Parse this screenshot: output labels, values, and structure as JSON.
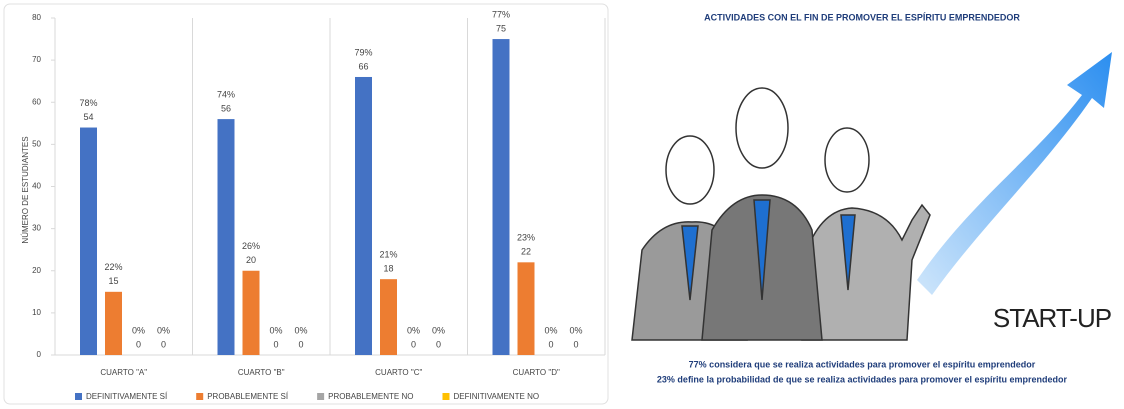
{
  "chart_data": {
    "type": "bar",
    "y_label": "NÚMERO DE ESTUDIANTES",
    "categories": [
      "CUARTO \"A\"",
      "CUARTO \"B\"",
      "CUARTO \"C\"",
      "CUARTO \"D\""
    ],
    "series": [
      {
        "name": "DEFINITIVAMENTE SÍ",
        "color": "#4472c4",
        "values": [
          54,
          56,
          66,
          75
        ],
        "percent_labels": [
          "78%",
          "74%",
          "79%",
          "77%"
        ]
      },
      {
        "name": "PROBABLEMENTE SÍ",
        "color": "#ed7d31",
        "values": [
          15,
          20,
          18,
          22
        ],
        "percent_labels": [
          "22%",
          "26%",
          "21%",
          "23%"
        ]
      },
      {
        "name": "PROBABLEMENTE NO",
        "color": "#a5a5a5",
        "values": [
          0,
          0,
          0,
          0
        ],
        "percent_labels": [
          "0%",
          "0%",
          "0%",
          "0%"
        ]
      },
      {
        "name": "DEFINITIVAMENTE NO",
        "color": "#ffc000",
        "values": [
          0,
          0,
          0,
          0
        ],
        "percent_labels": [
          "0%",
          "0%",
          "0%",
          "0%"
        ]
      }
    ],
    "ylim": [
      0,
      80
    ],
    "yticks": [
      0,
      10,
      20,
      30,
      40,
      50,
      60,
      70,
      80
    ],
    "legend": "bottom"
  },
  "infographic": {
    "title": "ACTIVIDADES CON EL FIN DE PROMOVER EL ESPÍRITU EMPRENDEDOR",
    "badge": "START-UP",
    "lines": [
      "77% considera que se realiza actividades para promover el espíritu emprendedor",
      "23% define la probabilidad de que se realiza actividades para promover el espíritu emprendedor"
    ]
  }
}
